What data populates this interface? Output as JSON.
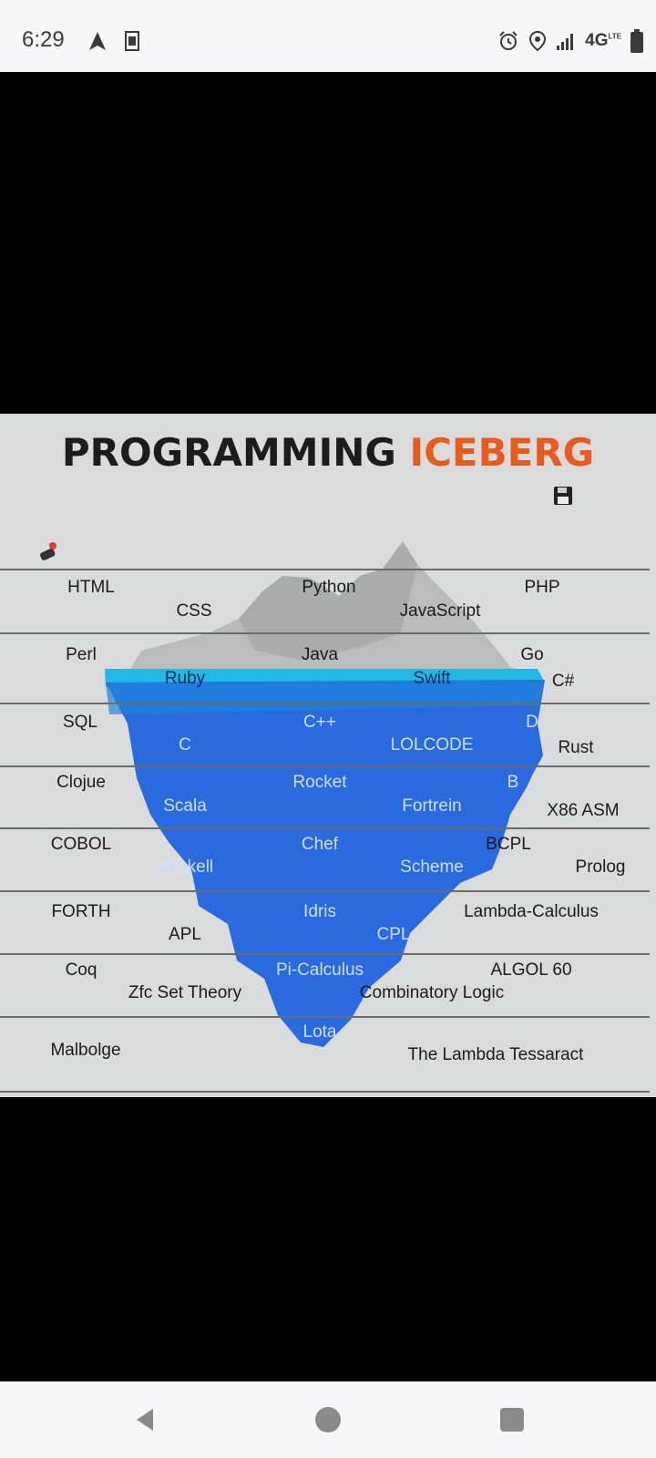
{
  "status": {
    "time": "6:29",
    "network": "4G",
    "network_sup": "LTE"
  },
  "poster": {
    "title_part1": "PROGRAMMING",
    "title_part2": "ICEBERG",
    "accent_color": "#ea5b1b",
    "tiers": [
      [
        "HTML",
        "CSS",
        "Python",
        "JavaScript",
        "PHP"
      ],
      [
        "Perl",
        "Ruby",
        "Java",
        "Swift",
        "Go",
        "C#"
      ],
      [
        "SQL",
        "C",
        "C++",
        "LOLCODE",
        "D",
        "Rust"
      ],
      [
        "Clojue",
        "Scala",
        "Rocket",
        "Fortrein",
        "B",
        "X86 ASM"
      ],
      [
        "COBOL",
        "Haskell",
        "Chef",
        "Scheme",
        "BCPL",
        "Prolog"
      ],
      [
        "FORTH",
        "APL",
        "Idris",
        "CPL",
        "Lambda-Calculus"
      ],
      [
        "Coq",
        "Zfc Set Theory",
        "Pi-Calculus",
        "Combinatory Logic",
        "ALGOL 60"
      ],
      [
        "Malbolge",
        "Lota",
        "The Lambda Tessaract"
      ]
    ]
  },
  "icons": {
    "nav": "navigation-arrow-icon",
    "news": "news-icon",
    "alarm": "alarm-icon",
    "location": "location-icon",
    "signal": "signal-icon",
    "battery": "battery-icon",
    "back": "back-icon",
    "home": "home-icon",
    "recents": "recents-icon"
  }
}
